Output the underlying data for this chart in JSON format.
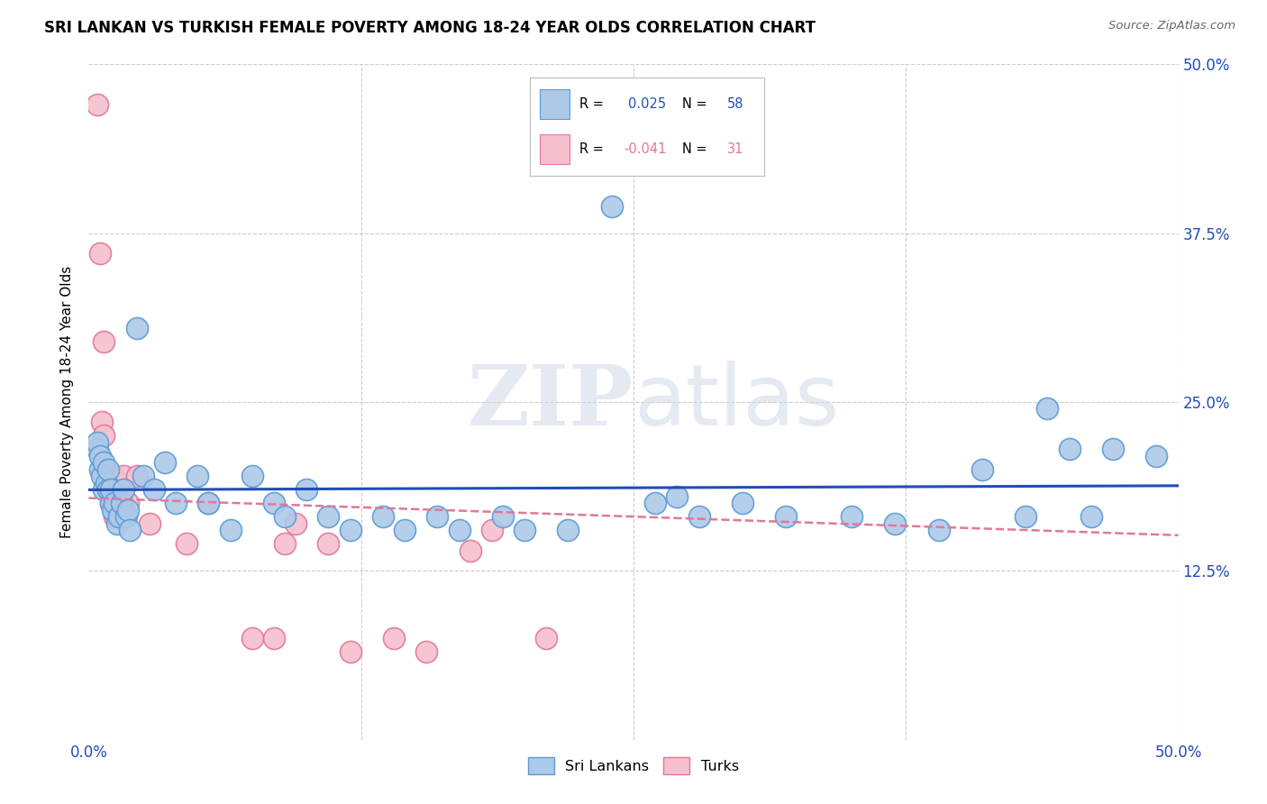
{
  "title": "SRI LANKAN VS TURKISH FEMALE POVERTY AMONG 18-24 YEAR OLDS CORRELATION CHART",
  "source": "Source: ZipAtlas.com",
  "ylabel": "Female Poverty Among 18-24 Year Olds",
  "xlim": [
    0.0,
    0.5
  ],
  "ylim": [
    0.0,
    0.5
  ],
  "background_color": "#ffffff",
  "grid_color": "#cccccc",
  "watermark_zip": "ZIP",
  "watermark_atlas": "atlas",
  "sri_lankan_color": "#adc9e8",
  "sri_lankan_edge_color": "#5b9bd5",
  "turk_color": "#f5bfce",
  "turk_edge_color": "#e07898",
  "sri_lankan_R": 0.025,
  "sri_lankan_N": 58,
  "turk_R": -0.041,
  "turk_N": 31,
  "sri_lankan_line_color": "#1f4eb5",
  "turk_line_color": "#e07898",
  "legend_R_color": "#1f4eb5",
  "legend_N_color": "#1f4eb5",
  "legend_turk_R_color": "#e07898",
  "legend_turk_N_color": "#e07898",
  "sri_lankans_x": [
    0.004,
    0.004,
    0.005,
    0.005,
    0.006,
    0.007,
    0.007,
    0.008,
    0.009,
    0.009,
    0.01,
    0.01,
    0.011,
    0.012,
    0.013,
    0.014,
    0.015,
    0.016,
    0.017,
    0.018,
    0.019,
    0.022,
    0.025,
    0.03,
    0.035,
    0.04,
    0.05,
    0.055,
    0.065,
    0.075,
    0.085,
    0.09,
    0.1,
    0.11,
    0.12,
    0.135,
    0.145,
    0.16,
    0.17,
    0.19,
    0.2,
    0.22,
    0.24,
    0.26,
    0.27,
    0.28,
    0.3,
    0.32,
    0.35,
    0.37,
    0.39,
    0.41,
    0.43,
    0.44,
    0.45,
    0.46,
    0.47,
    0.49
  ],
  "sri_lankans_y": [
    0.215,
    0.22,
    0.2,
    0.21,
    0.195,
    0.185,
    0.205,
    0.19,
    0.185,
    0.2,
    0.175,
    0.185,
    0.17,
    0.175,
    0.16,
    0.165,
    0.175,
    0.185,
    0.165,
    0.17,
    0.155,
    0.305,
    0.195,
    0.185,
    0.205,
    0.175,
    0.195,
    0.175,
    0.155,
    0.195,
    0.175,
    0.165,
    0.185,
    0.165,
    0.155,
    0.165,
    0.155,
    0.165,
    0.155,
    0.165,
    0.155,
    0.155,
    0.395,
    0.175,
    0.18,
    0.165,
    0.175,
    0.165,
    0.165,
    0.16,
    0.155,
    0.2,
    0.165,
    0.245,
    0.215,
    0.165,
    0.215,
    0.21
  ],
  "turks_x": [
    0.004,
    0.005,
    0.006,
    0.007,
    0.007,
    0.008,
    0.009,
    0.009,
    0.01,
    0.011,
    0.012,
    0.013,
    0.014,
    0.015,
    0.016,
    0.018,
    0.022,
    0.028,
    0.045,
    0.055,
    0.075,
    0.085,
    0.09,
    0.095,
    0.11,
    0.12,
    0.14,
    0.155,
    0.175,
    0.185,
    0.21
  ],
  "turks_y": [
    0.47,
    0.36,
    0.235,
    0.295,
    0.225,
    0.2,
    0.185,
    0.195,
    0.175,
    0.195,
    0.165,
    0.165,
    0.19,
    0.175,
    0.195,
    0.175,
    0.195,
    0.16,
    0.145,
    0.175,
    0.075,
    0.075,
    0.145,
    0.16,
    0.145,
    0.065,
    0.075,
    0.065,
    0.14,
    0.155,
    0.075
  ]
}
